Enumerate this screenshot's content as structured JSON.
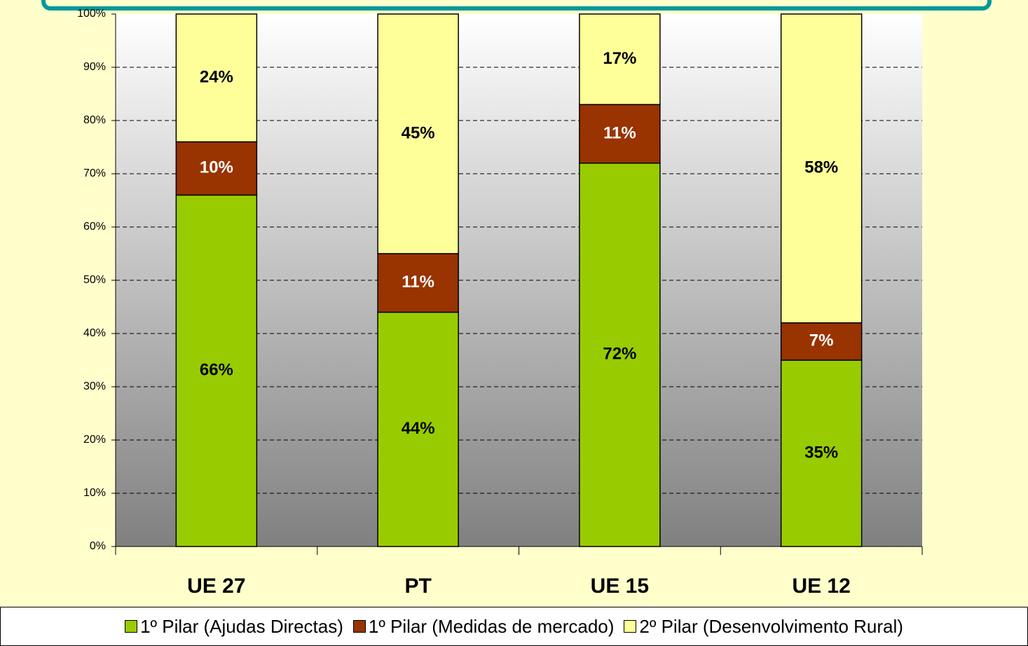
{
  "chart_data": {
    "type": "stacked_bar",
    "categories": [
      "UE 27",
      "PT",
      "UE 15",
      "UE 12"
    ],
    "series": [
      {
        "name": "1º Pilar (Ajudas Directas)",
        "color": "#99cc00",
        "values": [
          66,
          44,
          72,
          35
        ],
        "value_labels": [
          "66%",
          "44%",
          "72%",
          "35%"
        ]
      },
      {
        "name": "1º Pilar (Medidas de mercado)",
        "color": "#993300",
        "values": [
          10,
          11,
          11,
          7
        ],
        "value_labels": [
          "10%",
          "11%",
          "11%",
          "7%"
        ]
      },
      {
        "name": "2º Pilar (Desenvolvimento Rural)",
        "color": "#ffff99",
        "values": [
          24,
          45,
          17,
          58
        ],
        "value_labels": [
          "24%",
          "45%",
          "17%",
          "58%"
        ]
      }
    ],
    "ylim": [
      0,
      100
    ],
    "yticks": [
      {
        "value": 0,
        "label": "0%"
      },
      {
        "value": 10,
        "label": "10%"
      },
      {
        "value": 20,
        "label": "20%"
      },
      {
        "value": 30,
        "label": "30%"
      },
      {
        "value": 40,
        "label": "40%"
      },
      {
        "value": 50,
        "label": "50%"
      },
      {
        "value": 60,
        "label": "60%"
      },
      {
        "value": 70,
        "label": "70%"
      },
      {
        "value": 80,
        "label": "80%"
      },
      {
        "value": 90,
        "label": "90%"
      },
      {
        "value": 100,
        "label": "100%"
      }
    ],
    "grid": true,
    "legend": "bottom"
  }
}
